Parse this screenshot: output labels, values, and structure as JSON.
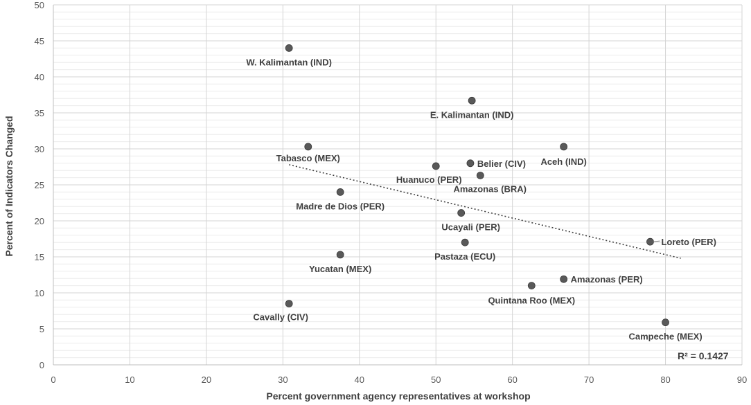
{
  "chart_data": {
    "type": "scatter",
    "title": "",
    "xlabel": "Percent government agency representatives at workshop",
    "ylabel": "Percent of Indicators Changed",
    "xlim": [
      0,
      90
    ],
    "ylim": [
      0,
      50
    ],
    "x_ticks": [
      "0",
      "10",
      "20",
      "30",
      "40",
      "50",
      "60",
      "70",
      "80",
      "90"
    ],
    "y_ticks": [
      "0",
      "5",
      "10",
      "15",
      "20",
      "25",
      "30",
      "35",
      "40",
      "45",
      "50"
    ],
    "grid": true,
    "legend": "none",
    "marker_color": "#595959",
    "points": [
      {
        "label": "W. Kalimantan (IND)",
        "x": 30.8,
        "y": 44.0
      },
      {
        "label": "E. Kalimantan (IND)",
        "x": 54.7,
        "y": 36.7
      },
      {
        "label": "Tabasco (MEX)",
        "x": 33.3,
        "y": 30.3
      },
      {
        "label": "Aceh (IND)",
        "x": 66.7,
        "y": 30.3
      },
      {
        "label": "Belier (CIV)",
        "x": 54.5,
        "y": 28.0
      },
      {
        "label": "Huanuco (PER)",
        "x": 50.0,
        "y": 27.6
      },
      {
        "label": "Amazonas (BRA)",
        "x": 55.8,
        "y": 26.3
      },
      {
        "label": "Madre de Dios (PER)",
        "x": 37.5,
        "y": 24.0
      },
      {
        "label": "Ucayali (PER)",
        "x": 53.3,
        "y": 21.1
      },
      {
        "label": "Loreto (PER)",
        "x": 78.0,
        "y": 17.1
      },
      {
        "label": "Pastaza (ECU)",
        "x": 53.8,
        "y": 17.0
      },
      {
        "label": "Yucatan (MEX)",
        "x": 37.5,
        "y": 15.3
      },
      {
        "label": "Amazonas (PER)",
        "x": 66.7,
        "y": 11.9
      },
      {
        "label": "Quintana Roo (MEX)",
        "x": 62.5,
        "y": 11.0
      },
      {
        "label": "Cavally (CIV)",
        "x": 30.8,
        "y": 8.5
      },
      {
        "label": "Campeche (MEX)",
        "x": 80.0,
        "y": 5.9
      }
    ],
    "trendline": {
      "type": "linear",
      "style": "dotted",
      "x_range": [
        30.8,
        82.0
      ],
      "y_at_start": 27.8,
      "y_at_end": 14.8
    },
    "r_squared_label": "R² = 0.1427"
  }
}
